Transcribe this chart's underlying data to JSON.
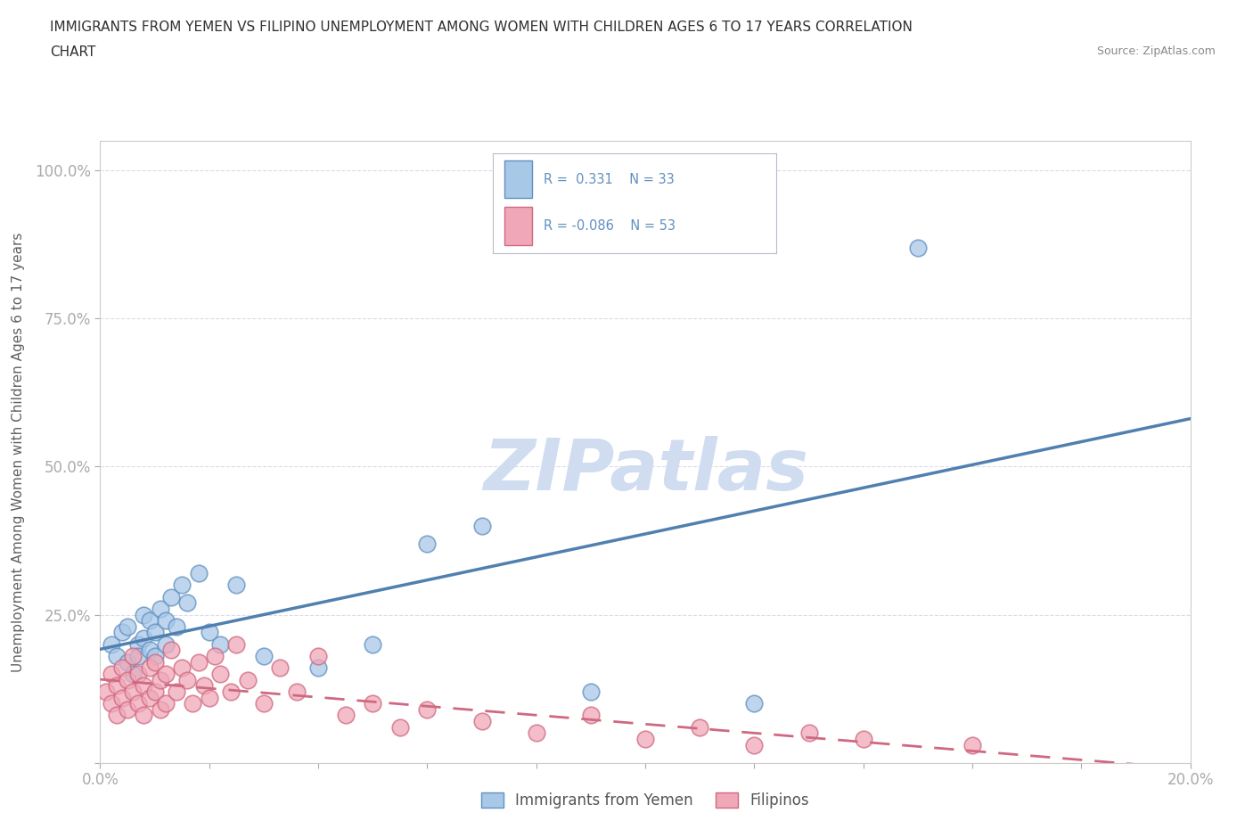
{
  "title_line1": "IMMIGRANTS FROM YEMEN VS FILIPINO UNEMPLOYMENT AMONG WOMEN WITH CHILDREN AGES 6 TO 17 YEARS CORRELATION",
  "title_line2": "CHART",
  "source": "Source: ZipAtlas.com",
  "ylabel": "Unemployment Among Women with Children Ages 6 to 17 years",
  "xlim": [
    0.0,
    0.2
  ],
  "ylim": [
    0.0,
    1.05
  ],
  "ytick_positions": [
    0.0,
    0.25,
    0.5,
    0.75,
    1.0
  ],
  "ytick_labels": [
    "",
    "25.0%",
    "50.0%",
    "75.0%",
    "100.0%"
  ],
  "xtick_positions": [
    0.0,
    0.02,
    0.04,
    0.06,
    0.08,
    0.1,
    0.12,
    0.14,
    0.16,
    0.18,
    0.2
  ],
  "xtick_labels": [
    "0.0%",
    "",
    "",
    "",
    "",
    "",
    "",
    "",
    "",
    "",
    "20.0%"
  ],
  "color_blue_fill": "#A8C8E8",
  "color_blue_edge": "#6090C0",
  "color_pink_fill": "#F0A8B8",
  "color_pink_edge": "#D06880",
  "color_blue_line": "#5080B0",
  "color_pink_line": "#D06880",
  "color_title": "#303030",
  "color_tick_label": "#6090C0",
  "color_ylabel": "#606060",
  "color_grid": "#D8D8E8",
  "color_source": "#888888",
  "watermark_text": "ZIPatlas",
  "watermark_color": "#D0DCF0",
  "background": "#FFFFFF",
  "blue_x": [
    0.002,
    0.003,
    0.004,
    0.005,
    0.005,
    0.006,
    0.007,
    0.007,
    0.008,
    0.008,
    0.009,
    0.009,
    0.01,
    0.01,
    0.011,
    0.012,
    0.012,
    0.013,
    0.014,
    0.015,
    0.016,
    0.018,
    0.02,
    0.022,
    0.025,
    0.03,
    0.04,
    0.05,
    0.06,
    0.07,
    0.09,
    0.12,
    0.15
  ],
  "blue_y": [
    0.2,
    0.18,
    0.22,
    0.17,
    0.23,
    0.15,
    0.2,
    0.18,
    0.21,
    0.25,
    0.19,
    0.24,
    0.22,
    0.18,
    0.26,
    0.2,
    0.24,
    0.28,
    0.23,
    0.3,
    0.27,
    0.32,
    0.22,
    0.2,
    0.3,
    0.18,
    0.16,
    0.2,
    0.37,
    0.4,
    0.12,
    0.1,
    0.87
  ],
  "pink_x": [
    0.001,
    0.002,
    0.002,
    0.003,
    0.003,
    0.004,
    0.004,
    0.005,
    0.005,
    0.006,
    0.006,
    0.007,
    0.007,
    0.008,
    0.008,
    0.009,
    0.009,
    0.01,
    0.01,
    0.011,
    0.011,
    0.012,
    0.012,
    0.013,
    0.014,
    0.015,
    0.016,
    0.017,
    0.018,
    0.019,
    0.02,
    0.021,
    0.022,
    0.024,
    0.025,
    0.027,
    0.03,
    0.033,
    0.036,
    0.04,
    0.045,
    0.05,
    0.055,
    0.06,
    0.07,
    0.08,
    0.09,
    0.1,
    0.11,
    0.12,
    0.13,
    0.14,
    0.16
  ],
  "pink_y": [
    0.12,
    0.1,
    0.15,
    0.08,
    0.13,
    0.11,
    0.16,
    0.09,
    0.14,
    0.12,
    0.18,
    0.1,
    0.15,
    0.13,
    0.08,
    0.16,
    0.11,
    0.12,
    0.17,
    0.09,
    0.14,
    0.1,
    0.15,
    0.19,
    0.12,
    0.16,
    0.14,
    0.1,
    0.17,
    0.13,
    0.11,
    0.18,
    0.15,
    0.12,
    0.2,
    0.14,
    0.1,
    0.16,
    0.12,
    0.18,
    0.08,
    0.1,
    0.06,
    0.09,
    0.07,
    0.05,
    0.08,
    0.04,
    0.06,
    0.03,
    0.05,
    0.04,
    0.03
  ],
  "legend_blue_r": "R =  0.331",
  "legend_blue_n": "N = 33",
  "legend_pink_r": "R = -0.086",
  "legend_pink_n": "N = 53",
  "legend_label_blue": "Immigrants from Yemen",
  "legend_label_pink": "Filipinos"
}
